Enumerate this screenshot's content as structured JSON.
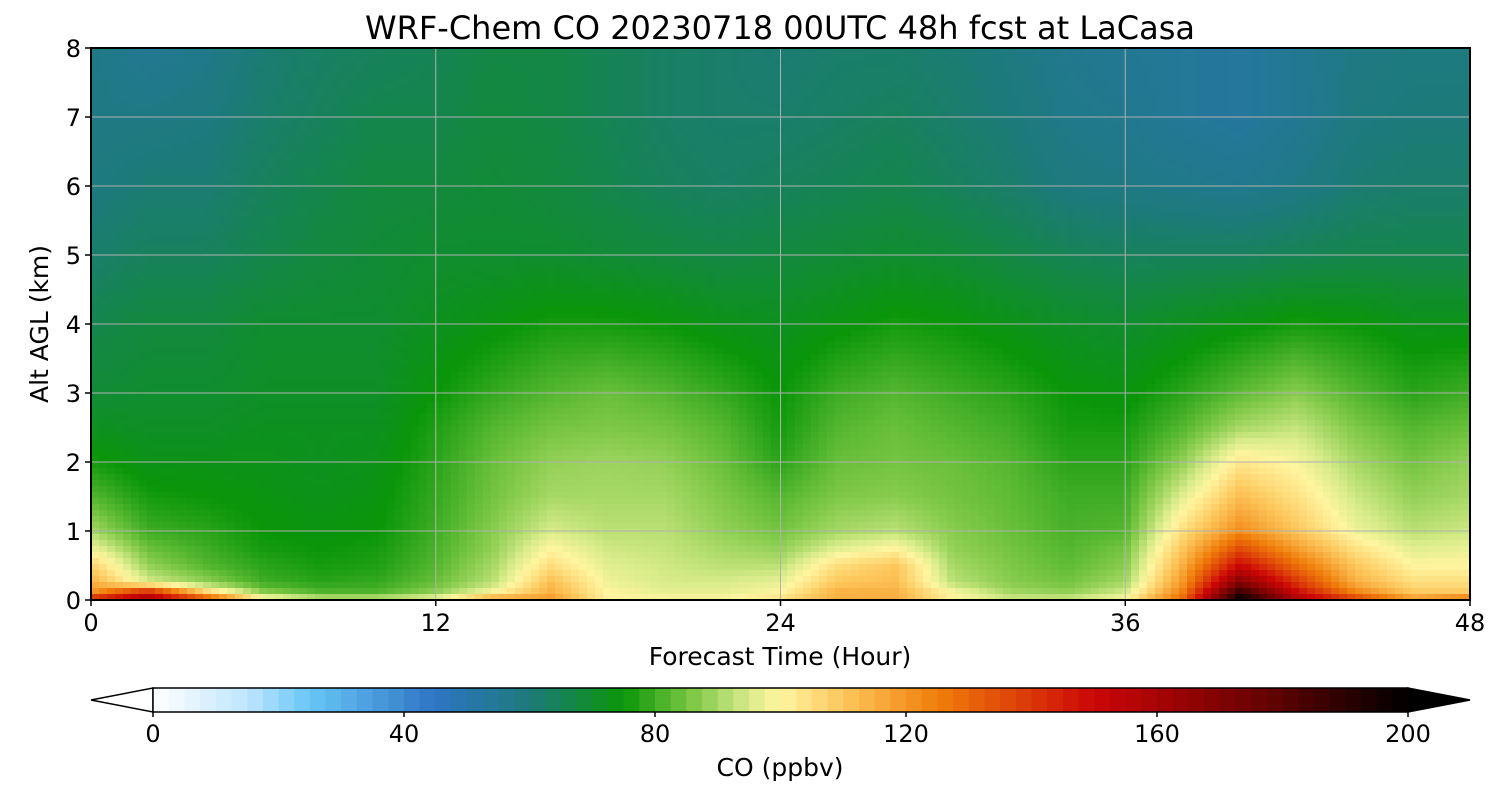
{
  "chart_data": {
    "type": "heatmap",
    "title": "WRF-Chem CO  20230718 00UTC 48h fcst at LaCasa",
    "xlabel": "Forecast Time (Hour)",
    "ylabel": "Alt AGL (km)",
    "xlim": [
      0,
      48
    ],
    "ylim": [
      0,
      8
    ],
    "xticks": [
      "0",
      "12",
      "24",
      "36",
      "48"
    ],
    "yticks": [
      "0",
      "1",
      "2",
      "3",
      "4",
      "5",
      "6",
      "7",
      "8"
    ],
    "grid": true,
    "colorbar": {
      "label": "CO  (ppbv)",
      "range": [
        0,
        200
      ],
      "ticks": [
        "0",
        "40",
        "80",
        "120",
        "160",
        "200"
      ],
      "extend": "both",
      "stops": [
        {
          "v": 0,
          "c": "#ffffff"
        },
        {
          "v": 15,
          "c": "#bfe6ff"
        },
        {
          "v": 25,
          "c": "#66c6f7"
        },
        {
          "v": 45,
          "c": "#2f74c4"
        },
        {
          "v": 60,
          "c": "#1c7a7a"
        },
        {
          "v": 75,
          "c": "#0a9609"
        },
        {
          "v": 85,
          "c": "#74c440"
        },
        {
          "v": 95,
          "c": "#d9ec8a"
        },
        {
          "v": 100,
          "c": "#fff5a0"
        },
        {
          "v": 110,
          "c": "#fdc75c"
        },
        {
          "v": 125,
          "c": "#f07e0a"
        },
        {
          "v": 150,
          "c": "#cc0606"
        },
        {
          "v": 175,
          "c": "#6e0202"
        },
        {
          "v": 200,
          "c": "#000000"
        }
      ]
    },
    "field": {
      "x_hours": [
        0,
        2,
        4,
        6,
        8,
        10,
        12,
        14,
        16,
        18,
        20,
        22,
        24,
        26,
        28,
        30,
        32,
        34,
        36,
        38,
        40,
        42,
        44,
        46,
        48
      ],
      "y_km": [
        0,
        0.1,
        0.25,
        0.5,
        0.75,
        1,
        1.5,
        2,
        2.5,
        3,
        4,
        5,
        6,
        7,
        8
      ],
      "values_ppbv": [
        [
          150,
          160,
          140,
          105,
          95,
          95,
          100,
          120,
          120,
          100,
          100,
          100,
          105,
          115,
          115,
          100,
          95,
          95,
          100,
          130,
          200,
          160,
          140,
          120,
          130
        ],
        [
          120,
          150,
          110,
          88,
          82,
          82,
          88,
          100,
          115,
          100,
          97,
          97,
          100,
          115,
          115,
          100,
          90,
          88,
          95,
          125,
          190,
          150,
          125,
          110,
          110
        ],
        [
          115,
          95,
          88,
          80,
          78,
          79,
          84,
          92,
          112,
          98,
          95,
          95,
          97,
          110,
          112,
          92,
          87,
          85,
          90,
          120,
          170,
          140,
          115,
          105,
          105
        ],
        [
          108,
          88,
          82,
          78,
          76,
          77,
          82,
          90,
          105,
          96,
          94,
          92,
          92,
          105,
          110,
          90,
          86,
          83,
          87,
          115,
          150,
          128,
          110,
          100,
          100
        ],
        [
          98,
          84,
          80,
          76,
          75,
          76,
          81,
          88,
          100,
          94,
          93,
          90,
          88,
          96,
          100,
          88,
          85,
          82,
          85,
          110,
          135,
          118,
          104,
          96,
          97
        ],
        [
          90,
          80,
          78,
          75,
          74,
          75,
          80,
          87,
          95,
          92,
          92,
          88,
          85,
          90,
          92,
          87,
          84,
          81,
          82,
          105,
          122,
          110,
          98,
          92,
          94
        ],
        [
          82,
          76,
          75,
          74,
          73,
          74,
          79,
          85,
          90,
          90,
          90,
          86,
          82,
          86,
          87,
          85,
          83,
          80,
          80,
          96,
          112,
          104,
          94,
          88,
          90
        ],
        [
          76,
          73,
          73,
          73,
          72,
          73,
          78,
          84,
          88,
          89,
          88,
          84,
          78,
          84,
          85,
          84,
          82,
          78,
          78,
          88,
          103,
          99,
          90,
          85,
          88
        ],
        [
          72,
          71,
          71,
          72,
          72,
          72,
          77,
          82,
          85,
          86,
          85,
          82,
          76,
          82,
          84,
          82,
          80,
          76,
          76,
          82,
          90,
          93,
          86,
          82,
          84
        ],
        [
          69,
          70,
          70,
          71,
          71,
          71,
          75,
          79,
          82,
          84,
          82,
          79,
          75,
          80,
          82,
          80,
          78,
          75,
          74,
          78,
          83,
          87,
          82,
          78,
          80
        ],
        [
          66,
          68,
          68,
          70,
          70,
          70,
          72,
          74,
          76,
          76,
          75,
          73,
          72,
          74,
          76,
          75,
          73,
          71,
          70,
          72,
          74,
          76,
          75,
          73,
          73
        ],
        [
          62,
          64,
          64,
          66,
          68,
          69,
          70,
          70,
          70,
          69,
          68,
          67,
          68,
          69,
          70,
          69,
          67,
          65,
          64,
          64,
          64,
          65,
          66,
          66,
          66
        ],
        [
          59,
          61,
          61,
          64,
          66,
          68,
          68,
          69,
          68,
          66,
          64,
          63,
          64,
          65,
          66,
          64,
          62,
          59,
          58,
          57,
          56,
          58,
          61,
          62,
          62
        ],
        [
          58,
          58,
          59,
          62,
          64,
          66,
          66,
          68,
          67,
          65,
          63,
          62,
          62,
          63,
          64,
          62,
          60,
          57,
          56,
          54,
          53,
          55,
          59,
          60,
          60
        ],
        [
          58,
          55,
          57,
          61,
          63,
          64,
          65,
          67,
          67,
          65,
          63,
          62,
          61,
          62,
          62,
          61,
          59,
          56,
          55,
          54,
          53,
          55,
          58,
          59,
          59
        ]
      ]
    }
  }
}
